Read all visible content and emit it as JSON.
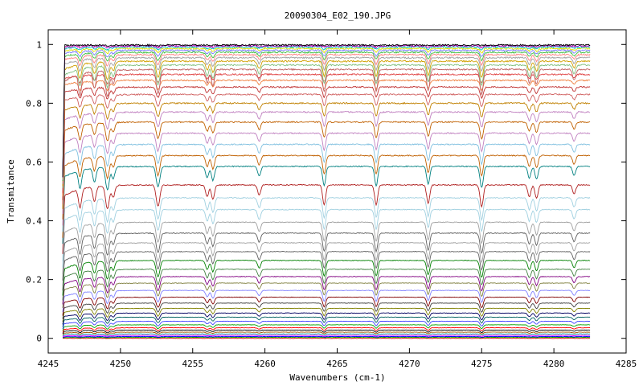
{
  "chart_data": {
    "type": "line",
    "title": "20090304_E02_190.JPG",
    "xlabel": "Wavenumbers (cm-1)",
    "ylabel": "Transmitance",
    "xlim": [
      4245,
      4285
    ],
    "ylim": [
      -0.05,
      1.05
    ],
    "x_range_data": [
      4246,
      4282.5
    ],
    "x_ticks": [
      4245,
      4250,
      4255,
      4260,
      4265,
      4270,
      4275,
      4280,
      4285
    ],
    "y_ticks": [
      0,
      0.2,
      0.4,
      0.6,
      0.8,
      1
    ],
    "x_tick_labels": [
      "4245",
      "4250",
      "4255",
      "4260",
      "4265",
      "4270",
      "4275",
      "4280",
      "4285"
    ],
    "y_tick_labels": [
      "0",
      "0.2",
      "0.4",
      "0.6",
      "0.8",
      "1"
    ],
    "grid": false,
    "legend": "none",
    "absorption_lines": [
      {
        "x": 4247.2,
        "depth": 0.28,
        "width": 0.15
      },
      {
        "x": 4248.2,
        "depth": 0.22,
        "width": 0.15
      },
      {
        "x": 4249.1,
        "depth": 0.35,
        "width": 0.18
      },
      {
        "x": 4249.5,
        "depth": 0.18,
        "width": 0.15
      },
      {
        "x": 4252.6,
        "depth": 0.32,
        "width": 0.18
      },
      {
        "x": 4256.0,
        "depth": 0.18,
        "width": 0.15
      },
      {
        "x": 4256.4,
        "depth": 0.22,
        "width": 0.15
      },
      {
        "x": 4259.6,
        "depth": 0.15,
        "width": 0.15
      },
      {
        "x": 4264.1,
        "depth": 0.3,
        "width": 0.15
      },
      {
        "x": 4267.7,
        "depth": 0.3,
        "width": 0.15
      },
      {
        "x": 4271.3,
        "depth": 0.28,
        "width": 0.15
      },
      {
        "x": 4275.0,
        "depth": 0.33,
        "width": 0.16
      },
      {
        "x": 4278.3,
        "depth": 0.18,
        "width": 0.15
      },
      {
        "x": 4278.8,
        "depth": 0.2,
        "width": 0.15
      },
      {
        "x": 4281.4,
        "depth": 0.14,
        "width": 0.15
      }
    ],
    "series": [
      {
        "baseline": 0.0,
        "color": "#ff0000"
      },
      {
        "baseline": 0.003,
        "color": "#00a000"
      },
      {
        "baseline": 0.006,
        "color": "#0000ff"
      },
      {
        "baseline": 0.01,
        "color": "#ff00ff"
      },
      {
        "baseline": 0.015,
        "color": "#00a0a0"
      },
      {
        "baseline": 0.021,
        "color": "#a05000"
      },
      {
        "baseline": 0.028,
        "color": "#000000"
      },
      {
        "baseline": 0.036,
        "color": "#ff0000"
      },
      {
        "baseline": 0.046,
        "color": "#00a000"
      },
      {
        "baseline": 0.058,
        "color": "#4040ff"
      },
      {
        "baseline": 0.072,
        "color": "#006060"
      },
      {
        "baseline": 0.086,
        "color": "#000060"
      },
      {
        "baseline": 0.102,
        "color": "#808000"
      },
      {
        "baseline": 0.12,
        "color": "#404040"
      },
      {
        "baseline": 0.14,
        "color": "#800000"
      },
      {
        "baseline": 0.163,
        "color": "#8080ff"
      },
      {
        "baseline": 0.188,
        "color": "#808040"
      },
      {
        "baseline": 0.21,
        "color": "#800080"
      },
      {
        "baseline": 0.235,
        "color": "#408040"
      },
      {
        "baseline": 0.265,
        "color": "#008000"
      },
      {
        "baseline": 0.295,
        "color": "#606060"
      },
      {
        "baseline": 0.325,
        "color": "#a0a0a0"
      },
      {
        "baseline": 0.358,
        "color": "#606060"
      },
      {
        "baseline": 0.395,
        "color": "#a0a0a0"
      },
      {
        "baseline": 0.438,
        "color": "#a0d0e0"
      },
      {
        "baseline": 0.478,
        "color": "#a0d0e0"
      },
      {
        "baseline": 0.522,
        "color": "#b02020"
      },
      {
        "baseline": 0.585,
        "color": "#008080"
      },
      {
        "baseline": 0.622,
        "color": "#c06000"
      },
      {
        "baseline": 0.66,
        "color": "#80c0e0"
      },
      {
        "baseline": 0.698,
        "color": "#c080c0"
      },
      {
        "baseline": 0.736,
        "color": "#c06000"
      },
      {
        "baseline": 0.77,
        "color": "#c080c0"
      },
      {
        "baseline": 0.8,
        "color": "#c08000"
      },
      {
        "baseline": 0.83,
        "color": "#d06060"
      },
      {
        "baseline": 0.855,
        "color": "#c03030"
      },
      {
        "baseline": 0.878,
        "color": "#f08040"
      },
      {
        "baseline": 0.898,
        "color": "#e04040"
      },
      {
        "baseline": 0.915,
        "color": "#c06060"
      },
      {
        "baseline": 0.93,
        "color": "#80c080"
      },
      {
        "baseline": 0.943,
        "color": "#d0a000"
      },
      {
        "baseline": 0.955,
        "color": "#a0a0a0"
      },
      {
        "baseline": 0.965,
        "color": "#ff8080"
      },
      {
        "baseline": 0.973,
        "color": "#40c040"
      },
      {
        "baseline": 0.98,
        "color": "#8080ff"
      },
      {
        "baseline": 0.986,
        "color": "#e0e000"
      },
      {
        "baseline": 0.991,
        "color": "#00c0c0"
      },
      {
        "baseline": 0.995,
        "color": "#c000c0"
      },
      {
        "baseline": 0.998,
        "color": "#000000"
      }
    ]
  }
}
